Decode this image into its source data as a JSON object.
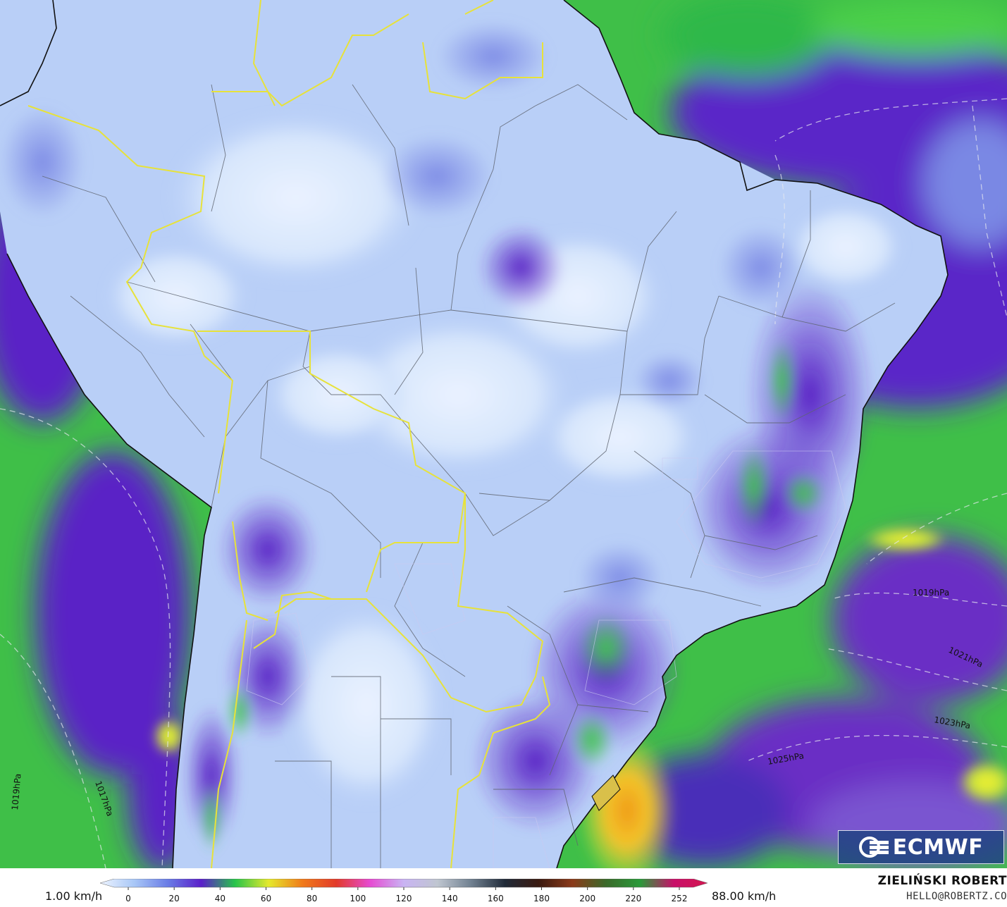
{
  "map": {
    "logo_text": "ECMWF",
    "isobar_labels": [
      "1019hPa",
      "1021hPa",
      "1023hPa",
      "1025hPa",
      "1017hPa",
      "1019hPa"
    ]
  },
  "legend": {
    "min_label": "1.00 km/h",
    "max_label": "88.00 km/h",
    "ticks": [
      "0",
      "20",
      "40",
      "60",
      "80",
      "100",
      "120",
      "140",
      "160",
      "180",
      "200",
      "220",
      "252"
    ],
    "colors": [
      "#eef4ff",
      "#a9c8f7",
      "#6a7de6",
      "#5a1fc9",
      "#27c44a",
      "#e5e92c",
      "#f07a1a",
      "#e23a2a",
      "#e64bd2",
      "#c9b4f3",
      "#bfc6d0",
      "#708090",
      "#202a38",
      "#3a1a10",
      "#8b3a1a",
      "#3a6a2a",
      "#2a9a3a",
      "#c8106a",
      "#d4154f"
    ]
  },
  "credits": {
    "author": "ZIELIŃSKI ROBERT",
    "email": "HELLO@ROBERTZ.CO"
  }
}
